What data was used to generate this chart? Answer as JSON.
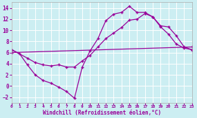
{
  "bg_color": "#cceef2",
  "line_color": "#990099",
  "grid_color": "#ffffff",
  "xlabel": "Windchill (Refroidissement éolien,°C)",
  "xlim": [
    0,
    23
  ],
  "ylim": [
    -3,
    15
  ],
  "xticks": [
    0,
    1,
    2,
    3,
    4,
    5,
    6,
    7,
    8,
    9,
    10,
    11,
    12,
    13,
    14,
    15,
    16,
    17,
    18,
    19,
    20,
    21,
    22,
    23
  ],
  "yticks": [
    -2,
    0,
    2,
    4,
    6,
    8,
    10,
    12,
    14
  ],
  "line1_x": [
    0,
    1,
    2,
    3,
    4,
    5,
    6,
    7,
    8,
    9,
    10,
    11,
    12,
    13,
    14,
    15,
    16,
    17,
    18,
    19,
    20,
    21,
    22,
    23
  ],
  "line1_y": [
    6.5,
    5.8,
    3.8,
    2.0,
    1.0,
    0.5,
    -0.2,
    -1.0,
    -2.2,
    3.4,
    6.3,
    8.5,
    11.7,
    12.9,
    13.2,
    14.3,
    13.2,
    13.2,
    12.4,
    10.6,
    9.3,
    7.5,
    6.8,
    6.5
  ],
  "line2_x": [
    0,
    2,
    3,
    4,
    5,
    6,
    7,
    8,
    9,
    10,
    11,
    12,
    13,
    14,
    15,
    16,
    17,
    18,
    19,
    20,
    21,
    22,
    23
  ],
  "line2_y": [
    6.5,
    5.0,
    4.2,
    3.8,
    3.6,
    3.8,
    3.4,
    3.4,
    4.5,
    5.5,
    7.0,
    8.5,
    9.5,
    10.5,
    11.8,
    12.0,
    13.0,
    12.4,
    10.8,
    10.6,
    9.0,
    7.0,
    6.5
  ],
  "line3_x": [
    0,
    23
  ],
  "line3_y": [
    6.0,
    7.0
  ]
}
